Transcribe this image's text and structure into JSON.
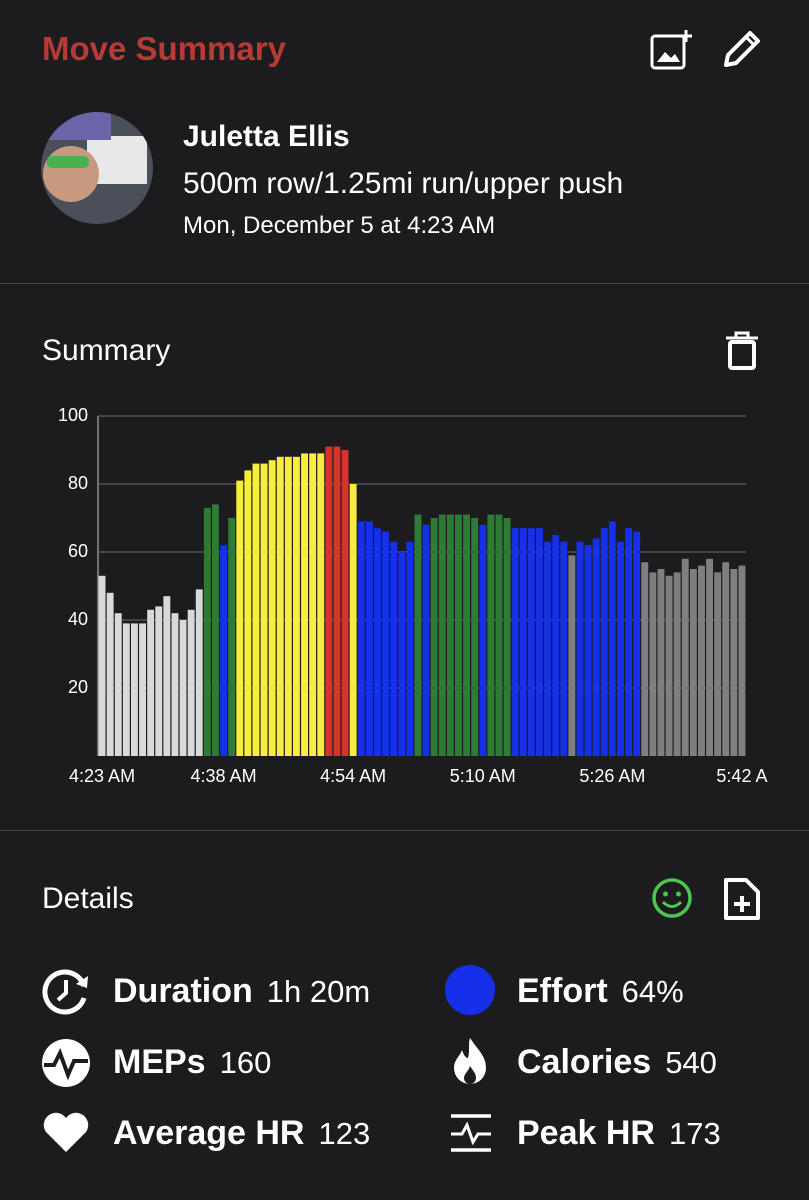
{
  "header": {
    "title": "Move Summary"
  },
  "profile": {
    "name": "Juletta Ellis",
    "workout": "500m row/1.25mi run/upper push",
    "date": "Mon, December 5 at 4:23 AM"
  },
  "summary": {
    "title": "Summary"
  },
  "chart_data": {
    "type": "bar",
    "categories": [
      "4:23 AM",
      null,
      null,
      null,
      null,
      null,
      null,
      null,
      null,
      null,
      null,
      null,
      null,
      null,
      null,
      "4:38 AM",
      null,
      null,
      null,
      null,
      null,
      null,
      null,
      null,
      null,
      null,
      null,
      null,
      null,
      null,
      null,
      "4:54 AM",
      null,
      null,
      null,
      null,
      null,
      null,
      null,
      null,
      null,
      null,
      null,
      null,
      null,
      null,
      null,
      "5:10 AM",
      null,
      null,
      null,
      null,
      null,
      null,
      null,
      null,
      null,
      null,
      null,
      null,
      null,
      null,
      null,
      "5:26 AM",
      null,
      null,
      null,
      null,
      null,
      null,
      null,
      null,
      null,
      null,
      null,
      null,
      null,
      null,
      null,
      "5:42 A"
    ],
    "values": [
      53,
      48,
      42,
      39,
      39,
      39,
      43,
      44,
      47,
      42,
      40,
      43,
      49,
      73,
      74,
      62,
      70,
      81,
      84,
      86,
      86,
      87,
      88,
      88,
      88,
      89,
      89,
      89,
      91,
      91,
      90,
      80,
      69,
      69,
      67,
      66,
      63,
      60,
      63,
      71,
      68,
      70,
      71,
      71,
      71,
      71,
      70,
      68,
      71,
      71,
      70,
      67,
      67,
      67,
      67,
      63,
      65,
      63,
      59,
      63,
      62,
      64,
      67,
      69,
      63,
      67,
      66,
      57,
      54,
      55,
      53,
      54,
      58,
      55,
      56,
      58,
      54,
      57,
      55,
      56
    ],
    "colors": [
      "#d9d9d9",
      "#d9d9d9",
      "#d9d9d9",
      "#d9d9d9",
      "#d9d9d9",
      "#d9d9d9",
      "#d9d9d9",
      "#d9d9d9",
      "#d9d9d9",
      "#d9d9d9",
      "#d9d9d9",
      "#d9d9d9",
      "#d9d9d9",
      "#2e7a36",
      "#2e7a36",
      "#1530e8",
      "#2e7a36",
      "#f8ec3c",
      "#f8ec3c",
      "#f8ec3c",
      "#f8ec3c",
      "#f8ec3c",
      "#f8ec3c",
      "#f8ec3c",
      "#f8ec3c",
      "#f8ec3c",
      "#f8ec3c",
      "#f8ec3c",
      "#d6332d",
      "#d6332d",
      "#d6332d",
      "#f8ec3c",
      "#1530e8",
      "#1530e8",
      "#1530e8",
      "#1530e8",
      "#1530e8",
      "#1530e8",
      "#1530e8",
      "#2e7a36",
      "#1530e8",
      "#2e7a36",
      "#2e7a36",
      "#2e7a36",
      "#2e7a36",
      "#2e7a36",
      "#2e7a36",
      "#1530e8",
      "#2e7a36",
      "#2e7a36",
      "#2e7a36",
      "#1530e8",
      "#1530e8",
      "#1530e8",
      "#1530e8",
      "#1530e8",
      "#1530e8",
      "#1530e8",
      "#7f7f7f",
      "#1530e8",
      "#1530e8",
      "#1530e8",
      "#1530e8",
      "#1530e8",
      "#1530e8",
      "#1530e8",
      "#1530e8",
      "#7f7f7f",
      "#7f7f7f",
      "#7f7f7f",
      "#7f7f7f",
      "#7f7f7f",
      "#7f7f7f",
      "#7f7f7f",
      "#7f7f7f",
      "#7f7f7f",
      "#7f7f7f",
      "#7f7f7f",
      "#7f7f7f",
      "#7f7f7f"
    ],
    "ylim": [
      0,
      100
    ],
    "yticks": [
      20,
      40,
      60,
      80,
      100
    ],
    "grid": true
  },
  "details": {
    "title": "Details",
    "stats": [
      {
        "label": "Duration",
        "value": "1h 20m"
      },
      {
        "label": "Effort",
        "value": "64%"
      },
      {
        "label": "MEPs",
        "value": "160"
      },
      {
        "label": "Calories",
        "value": "540"
      },
      {
        "label": "Average HR",
        "value": "123"
      },
      {
        "label": "Peak HR",
        "value": "173"
      }
    ]
  }
}
